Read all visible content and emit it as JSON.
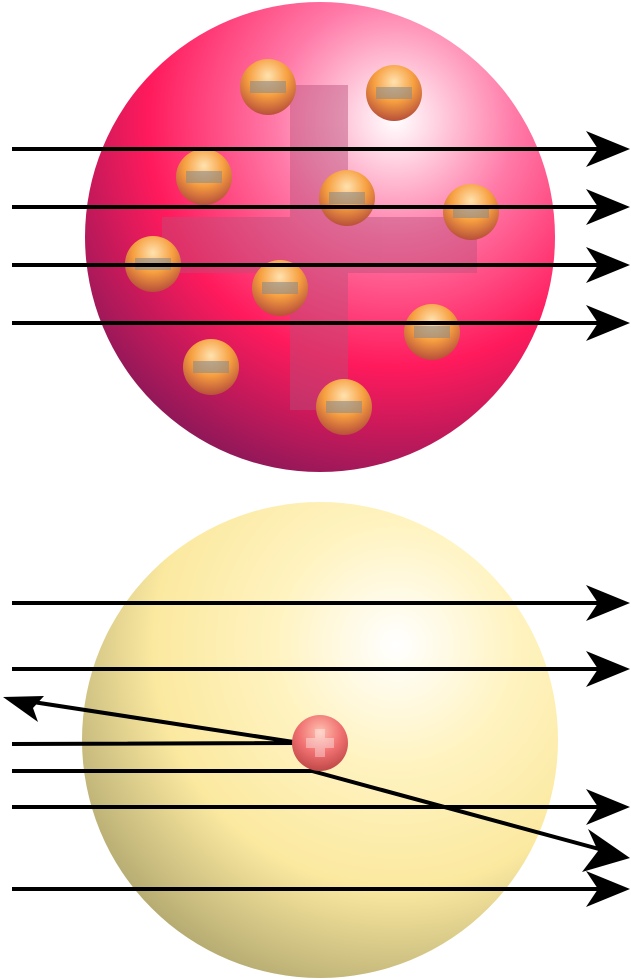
{
  "diagram": {
    "top_model": {
      "sphere_colors": {
        "highlight": "#ffffff",
        "mid": "#ff6f9f",
        "body": "#ff1a5c",
        "edge": "#7a1858"
      },
      "positive_charge_color": "#b8507a",
      "electron_colors": {
        "highlight": "#ffd9a0",
        "body": "#f7a040",
        "edge": "#c0503a"
      },
      "electron_count": 10,
      "straight_arrows": 4
    },
    "bottom_model": {
      "sphere_colors": {
        "highlight": "#ffffff",
        "mid": "#fff3c0",
        "body": "#fbe9a0",
        "edge": "#9c9460"
      },
      "nucleus_color": "#f06a6a",
      "straight_arrows": 4,
      "deflected_arrows": 2
    },
    "arrow_color": "#000000"
  }
}
